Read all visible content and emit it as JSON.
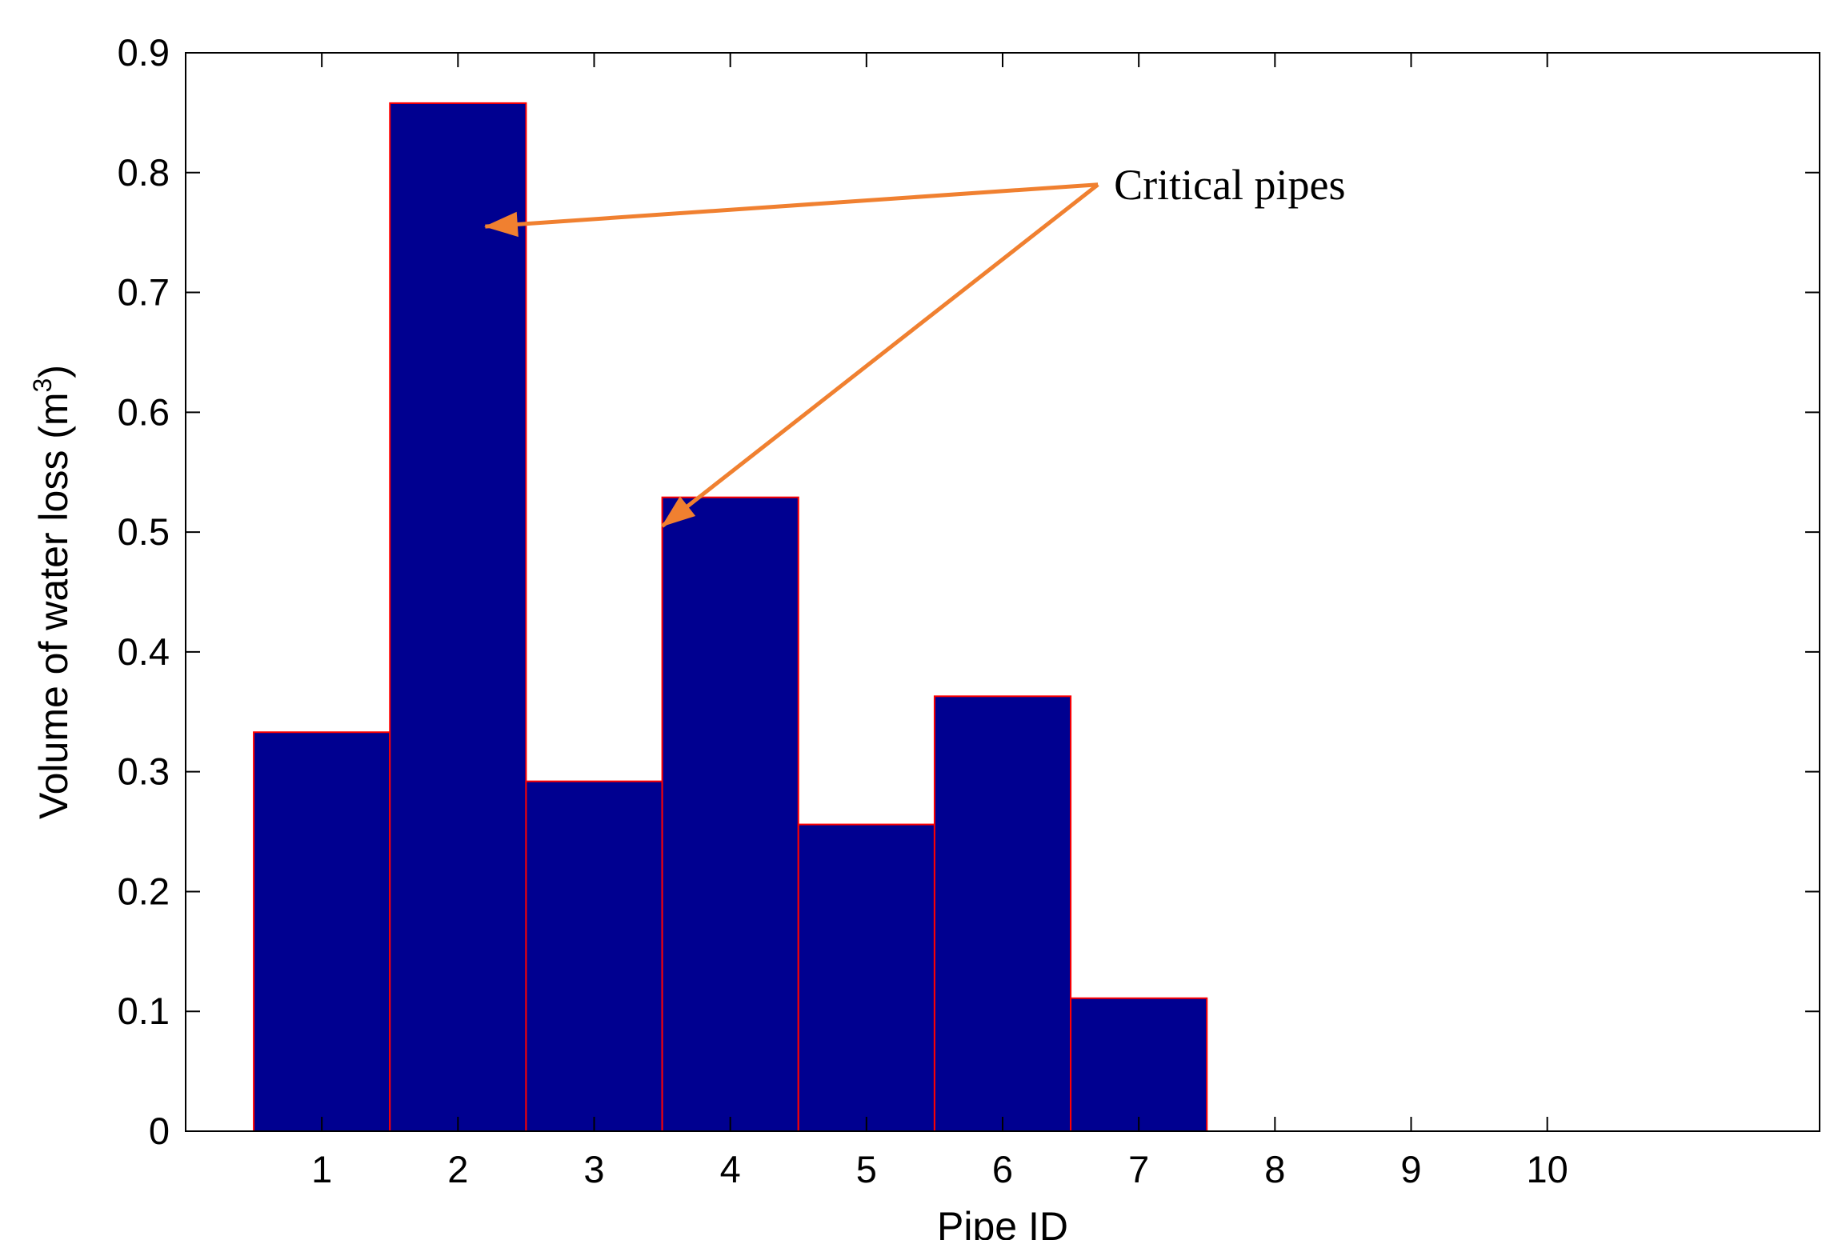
{
  "chart_data": {
    "type": "bar",
    "categories": [
      "1",
      "2",
      "3",
      "4",
      "5",
      "6",
      "7",
      "8",
      "9",
      "10"
    ],
    "values": [
      0.333,
      0.858,
      0.292,
      0.529,
      0.256,
      0.363,
      0.111,
      0,
      0,
      0
    ],
    "title": "",
    "xlabel": "Pipe ID",
    "ylabel": "Volume of water loss (m",
    "ylabel_superscript": "3",
    "ylabel_suffix": ")",
    "xlim": [
      0,
      12
    ],
    "ylim": [
      0,
      0.9
    ],
    "yticks": [
      "0",
      "0.1",
      "0.2",
      "0.3",
      "0.4",
      "0.5",
      "0.6",
      "0.7",
      "0.8",
      "0.9"
    ],
    "grid": false,
    "legend": null,
    "bar_color": "#000090",
    "bar_edge_color": "#ff0000",
    "annotation": {
      "text": "Critical pipes",
      "color": "#f08030",
      "targets": [
        {
          "x": 2.2,
          "y": 0.755
        },
        {
          "x": 3.5,
          "y": 0.505
        }
      ],
      "origin": {
        "x": 6.7,
        "y": 0.79
      }
    }
  }
}
